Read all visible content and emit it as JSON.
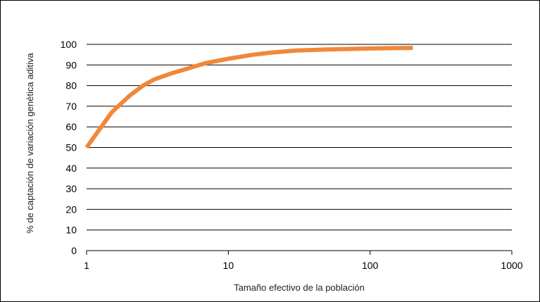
{
  "chart_data": {
    "type": "line",
    "title": "",
    "xlabel": "Tamaño efectivo de la población",
    "ylabel": "% de captación de variación genética aditiva",
    "x_scale": "log",
    "xlim": [
      1,
      1000
    ],
    "ylim": [
      0,
      100
    ],
    "x_ticks": [
      "1",
      "10",
      "100",
      "1000"
    ],
    "y_ticks": [
      "0",
      "10",
      "20",
      "30",
      "40",
      "50",
      "60",
      "70",
      "80",
      "90",
      "100"
    ],
    "grid": "horizontal",
    "legend": "none",
    "series": [
      {
        "color": "#F0883A",
        "x": [
          1,
          1.5,
          2,
          2.5,
          3,
          4,
          5,
          7,
          10,
          15,
          20,
          30,
          50,
          100,
          200
        ],
        "y": [
          50,
          67,
          75,
          80,
          83,
          86,
          88,
          91,
          93,
          95,
          96,
          97,
          97.5,
          98,
          98.3
        ]
      }
    ]
  }
}
